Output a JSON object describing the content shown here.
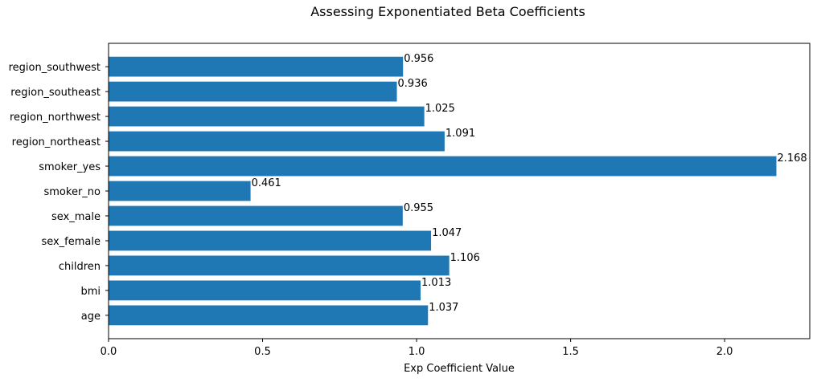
{
  "chart_data": {
    "type": "bar",
    "orientation": "horizontal",
    "title": "Assessing Exponentiated Beta Coefficients",
    "xlabel": "Exp Coefficient Value",
    "ylabel": "",
    "categories": [
      "age",
      "bmi",
      "children",
      "sex_female",
      "sex_male",
      "smoker_no",
      "smoker_yes",
      "region_northeast",
      "region_northwest",
      "region_southeast",
      "region_southwest"
    ],
    "values": [
      1.037,
      1.013,
      1.106,
      1.047,
      0.955,
      0.461,
      2.168,
      1.091,
      1.025,
      0.936,
      0.956
    ],
    "data_labels": [
      "1.037",
      "1.013",
      "1.106",
      "1.047",
      "0.955",
      "0.461",
      "2.168",
      "1.091",
      "1.025",
      "0.936",
      "0.956"
    ],
    "xlim": [
      0,
      2.2764
    ],
    "xticks": [
      0.0,
      0.5,
      1.0,
      1.5,
      2.0
    ],
    "xtick_labels": [
      "0.0",
      "0.5",
      "1.0",
      "1.5",
      "2.0"
    ],
    "grid": false,
    "bar_color": "#1f77b4"
  }
}
